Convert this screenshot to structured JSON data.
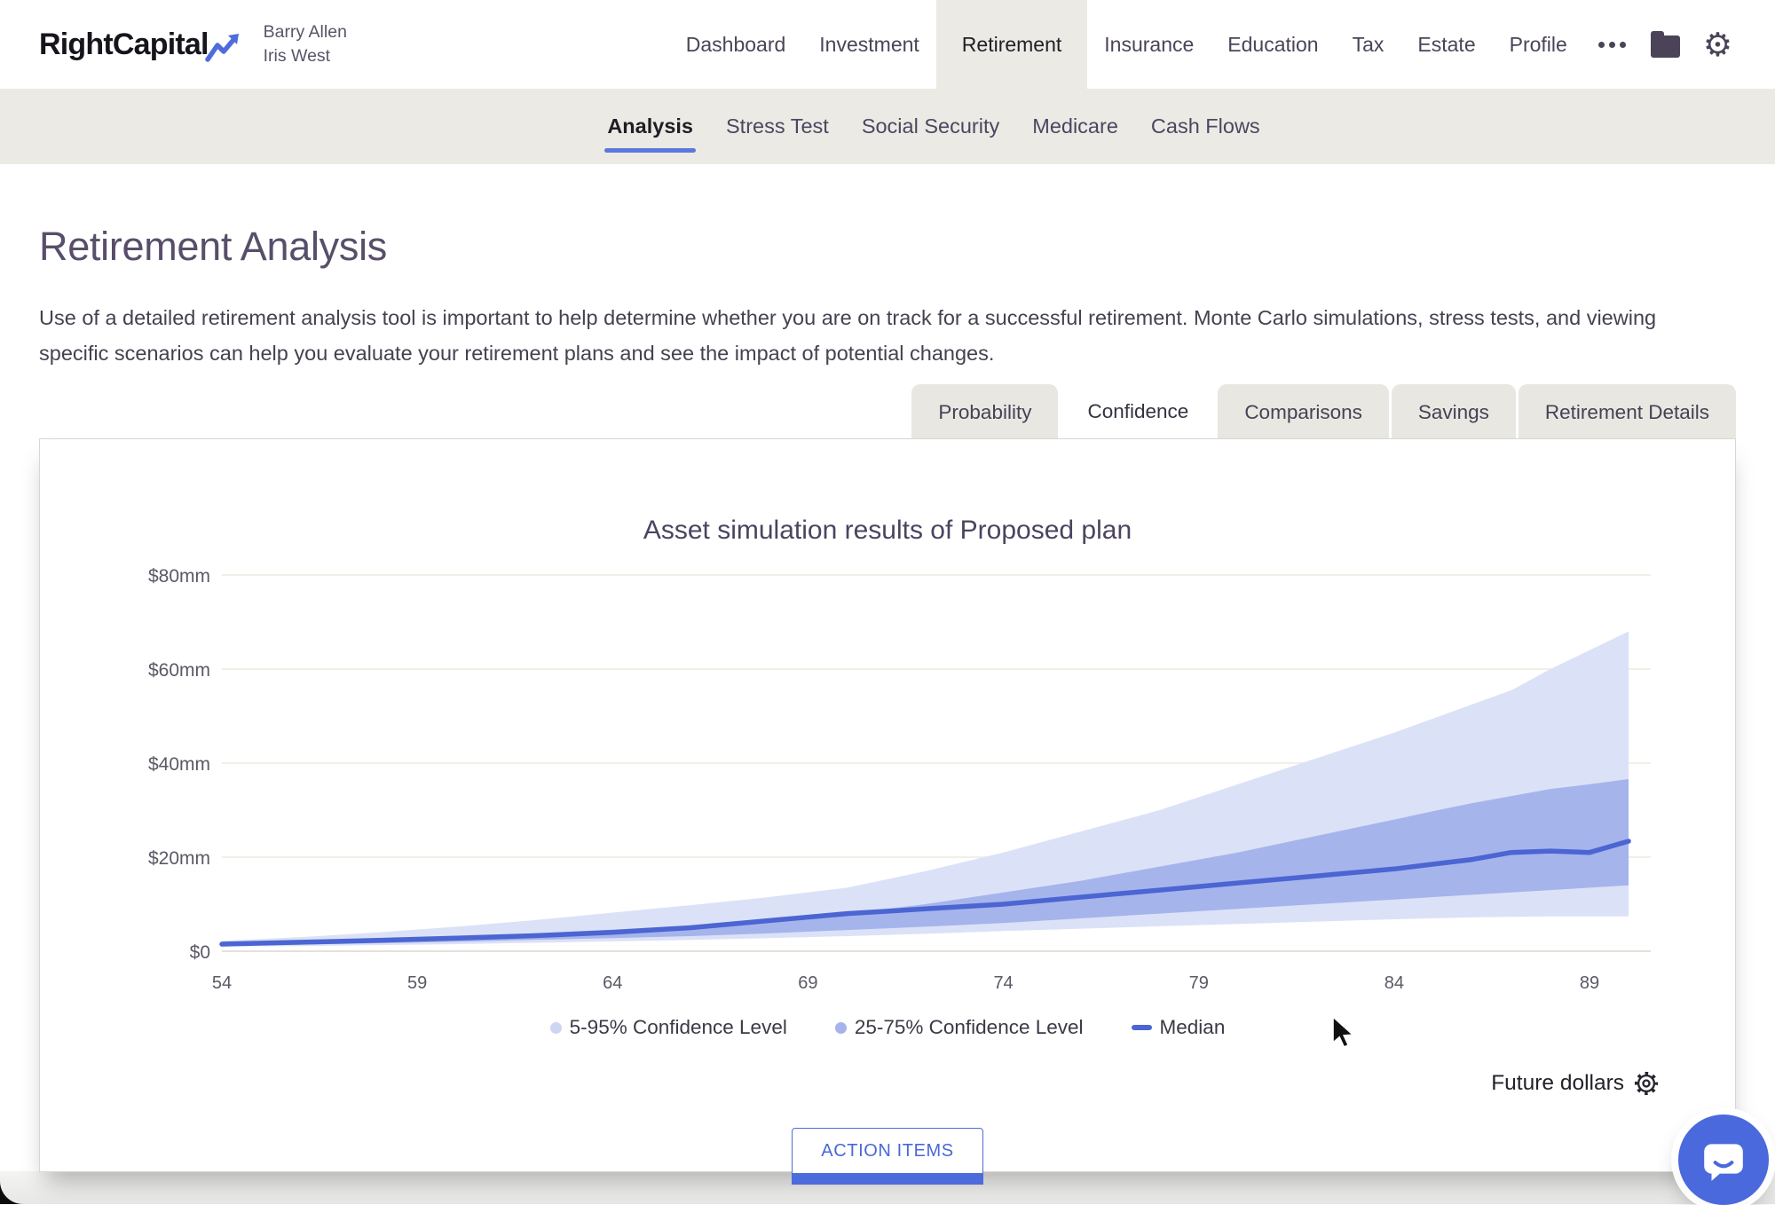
{
  "header": {
    "logo_text": "RightCapital",
    "client_names": [
      "Barry Allen",
      "Iris West"
    ],
    "nav_items": [
      "Dashboard",
      "Investment",
      "Retirement",
      "Insurance",
      "Education",
      "Tax",
      "Estate",
      "Profile"
    ],
    "active_nav": "Retirement"
  },
  "subnav": {
    "items": [
      "Analysis",
      "Stress Test",
      "Social Security",
      "Medicare",
      "Cash Flows"
    ],
    "active": "Analysis"
  },
  "page": {
    "title": "Retirement Analysis",
    "description": "Use of a detailed retirement analysis tool is important to help determine whether you are on track for a successful retirement. Monte Carlo simulations, stress tests, and viewing specific scenarios can help you evaluate your retirement plans and see the impact of potential changes."
  },
  "tabs": {
    "items": [
      "Probability",
      "Confidence",
      "Comparisons",
      "Savings",
      "Retirement Details"
    ],
    "active": "Confidence"
  },
  "chart_data": {
    "type": "area",
    "title": "Asset simulation results of Proposed plan",
    "units": "USD millions (mm)",
    "xlim": [
      54,
      90
    ],
    "ylim": [
      0,
      80
    ],
    "grid": true,
    "legend_position": "bottom",
    "xticks": [
      54,
      59,
      64,
      69,
      74,
      79,
      84,
      89
    ],
    "ytick_values": [
      80,
      60,
      40,
      20,
      0
    ],
    "ytick_labels": [
      "$80mm",
      "$60mm",
      "$40mm",
      "$20mm",
      "$0"
    ],
    "x": [
      54,
      56,
      58,
      60,
      62,
      64,
      66,
      68,
      70,
      72,
      74,
      76,
      78,
      80,
      82,
      84,
      85,
      86,
      87,
      88,
      89,
      90
    ],
    "series": [
      {
        "name": "5-95% Confidence Level",
        "type": "band",
        "color": "#DBE2F7",
        "low": [
          1.0,
          1.1,
          1.3,
          1.5,
          1.8,
          2.1,
          2.4,
          2.8,
          3.2,
          3.7,
          4.3,
          4.8,
          5.3,
          5.8,
          6.3,
          6.8,
          7.0,
          7.2,
          7.3,
          7.4,
          7.4,
          7.4
        ],
        "high": [
          2.2,
          3.0,
          4.0,
          5.2,
          6.6,
          8.2,
          9.8,
          11.5,
          13.5,
          17.0,
          21.0,
          25.5,
          30.0,
          35.5,
          41.0,
          46.5,
          49.5,
          52.5,
          55.5,
          60.0,
          64.0,
          68.0
        ]
      },
      {
        "name": "25-75% Confidence Level",
        "type": "band",
        "color": "#A6B4EC",
        "low": [
          1.2,
          1.4,
          1.7,
          2.0,
          2.4,
          2.8,
          3.2,
          3.8,
          4.5,
          5.2,
          6.0,
          7.0,
          8.0,
          9.0,
          10.0,
          11.0,
          11.5,
          12.0,
          12.5,
          13.0,
          13.5,
          14.0
        ],
        "high": [
          1.8,
          2.2,
          2.6,
          3.2,
          3.8,
          4.6,
          5.5,
          6.6,
          8.0,
          10.0,
          12.5,
          15.0,
          18.0,
          21.0,
          24.5,
          28.0,
          29.8,
          31.5,
          33.0,
          34.5,
          35.5,
          36.6
        ]
      },
      {
        "name": "Median",
        "type": "line",
        "color": "#4B65D2",
        "values": [
          1.5,
          1.9,
          2.3,
          2.8,
          3.3,
          4.0,
          5.0,
          6.5,
          8.0,
          9.0,
          10.0,
          11.5,
          13.0,
          14.5,
          16.0,
          17.5,
          18.5,
          19.5,
          21.0,
          21.3,
          21.0,
          23.4
        ]
      }
    ]
  },
  "panel": {
    "units_label": "Future dollars",
    "action_button_label": "ACTION ITEMS"
  },
  "colors": {
    "accent_blue": "#4D6CDB",
    "nav_text": "#4B4459",
    "active_bg_beige": "#ECEAE4",
    "tab_bg": "#E9E7E1",
    "band_outer": "#DBE2F7",
    "band_inner": "#A6B4EC",
    "median_line": "#4B65D2",
    "grid_line": "#F1EFE8"
  }
}
